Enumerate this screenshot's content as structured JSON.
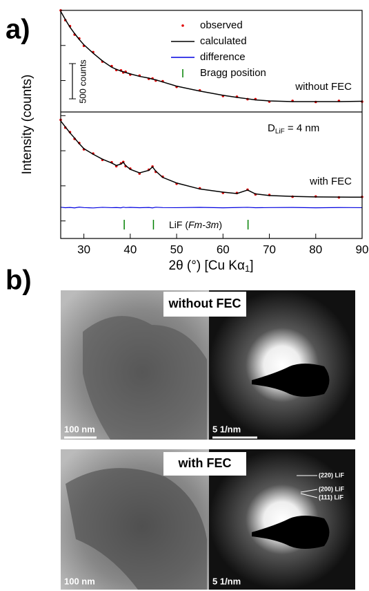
{
  "panel_labels": [
    "a)",
    "b)"
  ],
  "chart_data": {
    "type": "line",
    "xlabel": {
      "main": "2θ (°) [Cu Kα",
      "sub": "1",
      "end": "]"
    },
    "ylabel": "Intensity (counts)",
    "xlim": [
      25,
      90
    ],
    "xticks": [
      30,
      40,
      50,
      60,
      70,
      80,
      90
    ],
    "ylim": [
      0,
      3250
    ],
    "yticks": [
      250,
      750,
      1250,
      1750,
      2250,
      2750,
      3250
    ],
    "legend": [
      {
        "name": "observed",
        "color": "#e00000"
      },
      {
        "name": "calculated",
        "color": "#000000"
      },
      {
        "name": "difference",
        "color": "#0000e0"
      },
      {
        "name": "Bragg position",
        "color": "#008000"
      }
    ],
    "scale_bar_label": "500 counts",
    "x": [
      25,
      26,
      27,
      28,
      29,
      30,
      32,
      34,
      36,
      37,
      38,
      38.5,
      39,
      40,
      42,
      44,
      44.8,
      45.5,
      47,
      50,
      55,
      60,
      63,
      65.3,
      67,
      70,
      75,
      80,
      85,
      90
    ],
    "curves": [
      {
        "label": "without FEC",
        "observed": [
          3250,
          3110,
          3025,
          2905,
          2850,
          2745,
          2655,
          2520,
          2455,
          2400,
          2395,
          2365,
          2375,
          2335,
          2320,
          2275,
          2280,
          2250,
          2240,
          2160,
          2110,
          2030,
          2020,
          1985,
          1985,
          1950,
          1960,
          1945,
          1960,
          1950
        ],
        "calculated": [
          3235,
          3120,
          3010,
          2920,
          2835,
          2760,
          2640,
          2530,
          2440,
          2410,
          2385,
          2375,
          2365,
          2345,
          2310,
          2285,
          2270,
          2260,
          2230,
          2170,
          2100,
          2040,
          2010,
          1990,
          1975,
          1960,
          1950,
          1950,
          1950,
          1955
        ]
      },
      {
        "label": "with FEC",
        "observed": [
          1690,
          1580,
          1515,
          1420,
          1360,
          1270,
          1210,
          1120,
          1085,
          1030,
          1070,
          1090,
          1030,
          995,
          925,
          980,
          1025,
          950,
          880,
          780,
          715,
          650,
          648,
          695,
          628,
          620,
          595,
          598,
          585,
          592
        ],
        "calculated": [
          1675,
          1590,
          1505,
          1430,
          1350,
          1280,
          1200,
          1130,
          1075,
          1040,
          1060,
          1085,
          1040,
          985,
          935,
          970,
          1020,
          960,
          870,
          790,
          705,
          660,
          640,
          690,
          635,
          612,
          600,
          592,
          590,
          588
        ]
      }
    ],
    "difference": [
      445,
      438,
      442,
      436,
      447,
      440,
      435,
      444,
      439,
      441,
      437,
      446,
      440,
      443,
      438,
      442,
      436,
      445,
      440,
      439,
      443,
      437,
      441,
      444,
      438,
      440,
      442,
      437,
      441,
      439
    ],
    "bragg": {
      "x": [
        38.7,
        45.0,
        65.4
      ],
      "label": {
        "main": "LiF (",
        "italic": "Fm-3m",
        "end": ")"
      }
    },
    "size_label": {
      "main": "D",
      "sub": "LiF",
      "end": " = 4 nm"
    }
  },
  "panel_b": {
    "images": [
      {
        "title": "without FEC",
        "scale_left": "100 nm",
        "scale_right": "5 1/nm"
      },
      {
        "title": "with FEC",
        "scale_left": "100 nm",
        "scale_right": "5 1/nm",
        "rings": [
          "(220) LiF",
          "(200) LiF",
          "(111) LiF"
        ]
      }
    ]
  }
}
